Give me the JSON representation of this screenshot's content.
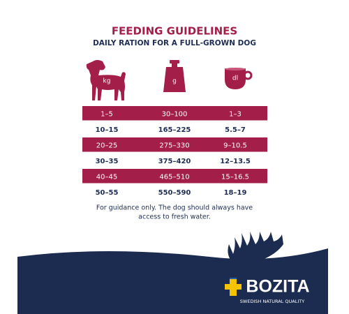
{
  "header": {
    "title": "FEEDING GUIDELINES",
    "subtitle": "DAILY RATION FOR A FULL-GROWN DOG"
  },
  "columns": [
    "kg",
    "g",
    "dl"
  ],
  "table": {
    "rows": [
      [
        "1–5",
        "30–100",
        "1–3"
      ],
      [
        "10–15",
        "165–225",
        "5.5–7"
      ],
      [
        "20–25",
        "275–330",
        "9–10.5"
      ],
      [
        "30–35",
        "375–420",
        "12–13.5"
      ],
      [
        "40–45",
        "465–510",
        "15–16.5"
      ],
      [
        "50–55",
        "550–590",
        "18–19"
      ]
    ]
  },
  "note": [
    "For guidance only. The dog should always have",
    "access to fresh water."
  ],
  "logo": {
    "name": "BOZITA",
    "tagline": "SWEDISH NATURAL QUALITY"
  }
}
